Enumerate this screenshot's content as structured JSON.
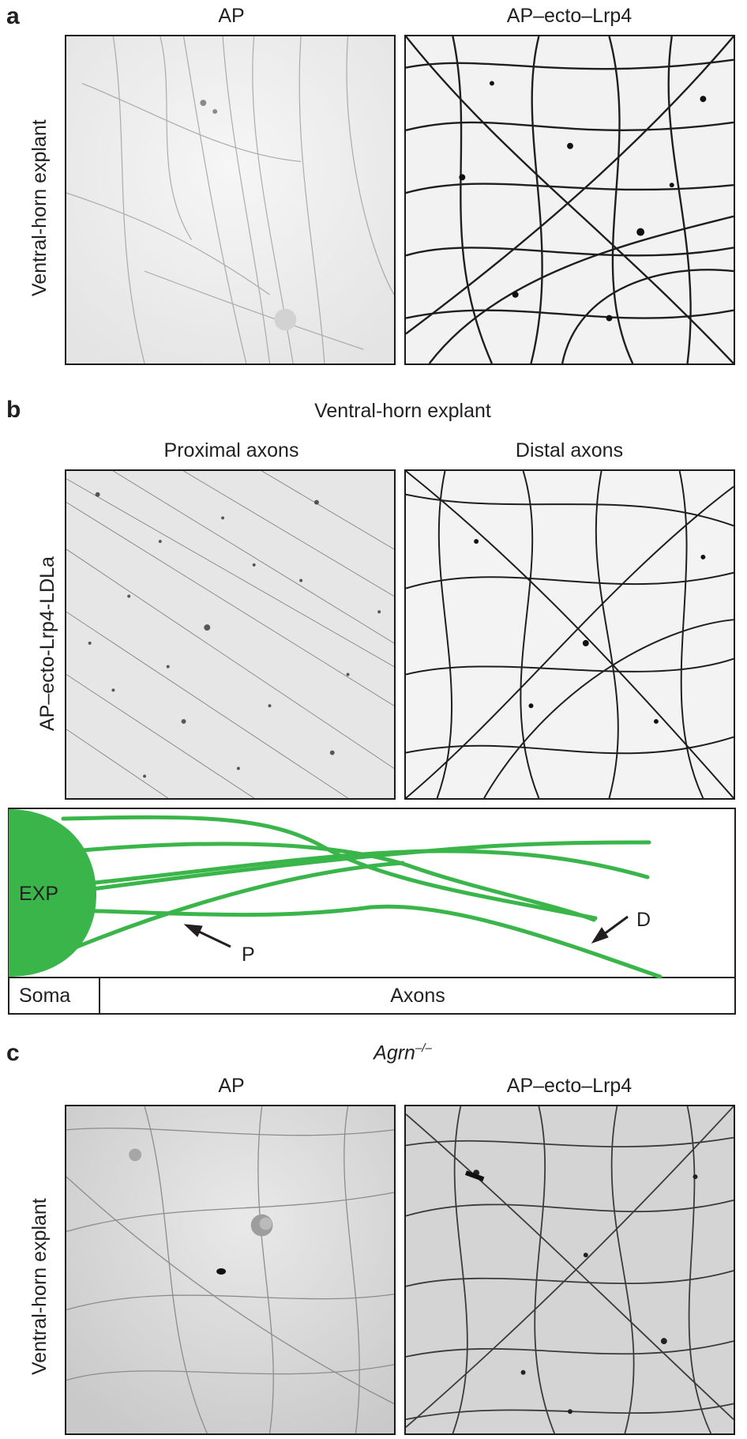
{
  "panel_a": {
    "letter": "a",
    "row_label": "Ventral-horn explant",
    "col_left": "AP",
    "col_right": "AP–ecto–Lrp4"
  },
  "panel_b": {
    "letter": "b",
    "title": "Ventral-horn explant",
    "row_label": "AP–ecto-Lrp4-LDLa",
    "col_left": "Proximal axons",
    "col_right": "Distal axons",
    "diagram": {
      "exp_label": "EXP",
      "p_label": "P",
      "d_label": "D",
      "soma_label": "Soma",
      "axons_label": "Axons",
      "axon_color": "#3ab54a"
    }
  },
  "panel_c": {
    "letter": "c",
    "genotype": "Agrn",
    "genotype_sup": "–/–",
    "row_label": "Ventral-horn explant",
    "col_left": "AP",
    "col_right": "AP–ecto–Lrp4"
  }
}
